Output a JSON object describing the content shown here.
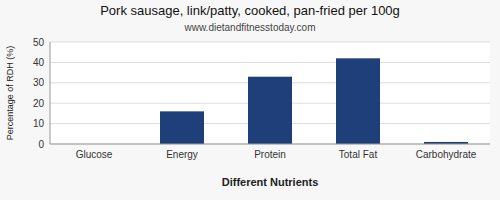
{
  "chart_data": {
    "type": "bar",
    "title": "Pork sausage, link/patty, cooked, pan-fried per 100g",
    "subtitle": "www.dietandfitnesstoday.com",
    "xlabel": "Different Nutrients",
    "ylabel": "Percentage of RDH (%)",
    "categories": [
      "Glucose",
      "Energy",
      "Protein",
      "Total Fat",
      "Carbohydrate"
    ],
    "values": [
      0,
      16,
      33,
      42,
      1
    ],
    "color": "#1F3F7A",
    "ylim": [
      0,
      50
    ],
    "yticks": [
      0,
      10,
      20,
      30,
      40,
      50
    ],
    "grid": true
  }
}
